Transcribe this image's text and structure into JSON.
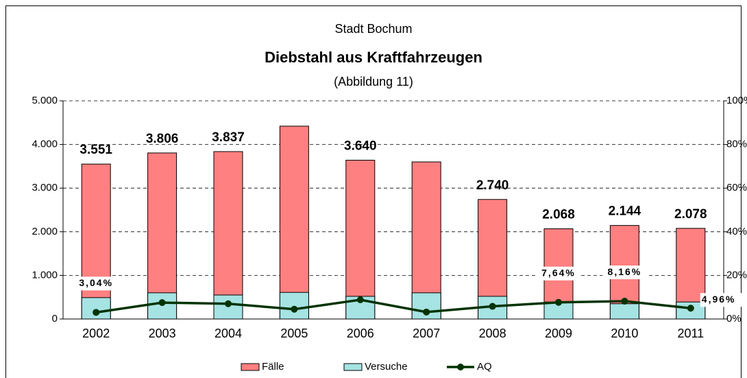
{
  "chart_data": {
    "type": "bar",
    "supertitle": "Stadt Bochum",
    "title": "Diebstahl aus Kraftfahrzeugen",
    "subtitle": "(Abbildung 11)",
    "categories": [
      "2002",
      "2003",
      "2004",
      "2005",
      "2006",
      "2007",
      "2008",
      "2009",
      "2010",
      "2011"
    ],
    "series": [
      {
        "name": "Fälle",
        "color": "#ff8080",
        "values": [
          3551,
          3806,
          3837,
          4420,
          3640,
          3600,
          2740,
          2068,
          2144,
          2078
        ],
        "value_labels": [
          "3.551",
          "3.806",
          "3.837",
          null,
          "3.640",
          null,
          "2.740",
          "2.068",
          "2.144",
          "2.078"
        ]
      },
      {
        "name": "Versuche",
        "color": "#a6e3e3",
        "values": [
          490,
          600,
          550,
          610,
          520,
          600,
          520,
          390,
          350,
          390
        ]
      },
      {
        "name": "AQ",
        "color": "#003300",
        "axis": "y2",
        "values": [
          3.04,
          7.5,
          7,
          4.5,
          8.8,
          3.2,
          5.8,
          7.64,
          8.16,
          4.96
        ],
        "value_labels": [
          "3,04%",
          null,
          null,
          null,
          null,
          null,
          null,
          "7,64%",
          "8,16%",
          "4,96%"
        ]
      }
    ],
    "ylim": [
      0,
      5000
    ],
    "yticks": [
      0,
      {
        "value": 1000,
        "label": "1.000"
      },
      {
        "value": 2000,
        "label": "2.000"
      },
      {
        "value": 3000,
        "label": "3.000"
      },
      {
        "value": 4000,
        "label": "4.000"
      },
      {
        "value": 5000,
        "label": "5.000"
      }
    ],
    "y2lim": [
      0,
      100
    ],
    "y2ticks": [
      {
        "value": 0,
        "label": "0%"
      },
      {
        "value": 20,
        "label": "20%"
      },
      {
        "value": 40,
        "label": "40%"
      },
      {
        "value": 60,
        "label": "60%"
      },
      {
        "value": 80,
        "label": "80%"
      },
      {
        "value": 100,
        "label": "100%"
      }
    ],
    "grid": true
  }
}
